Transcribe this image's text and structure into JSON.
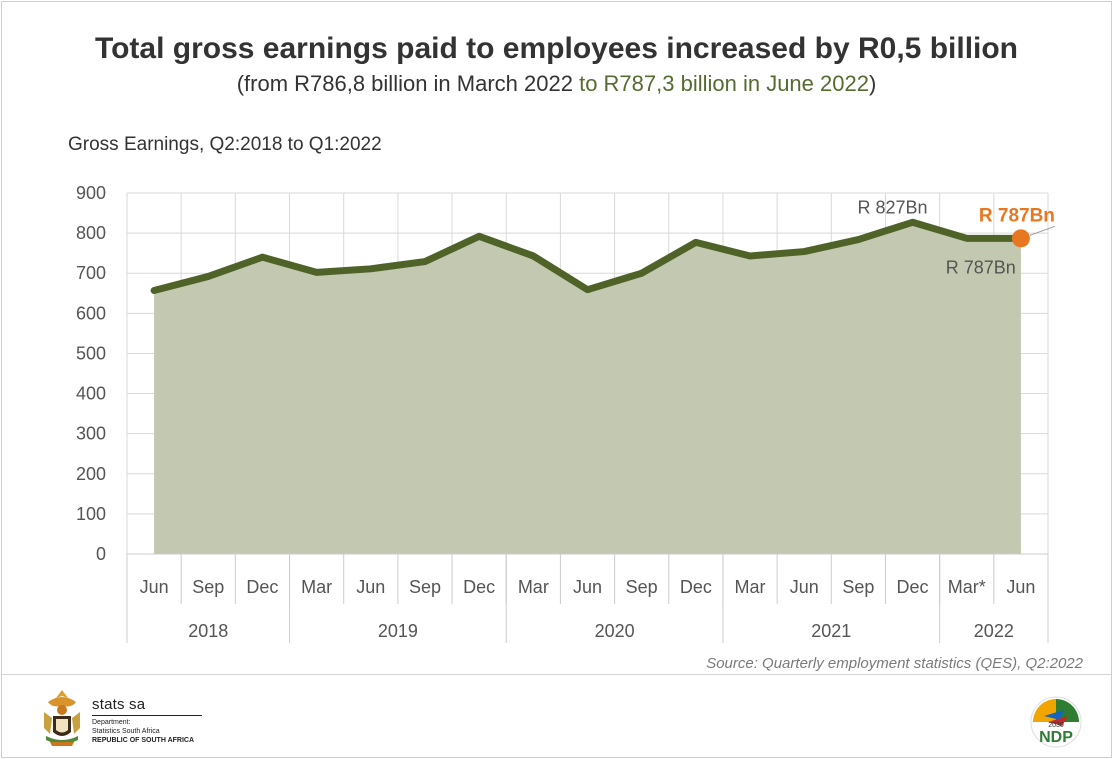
{
  "header": {
    "title": "Total gross earnings paid to employees increased by R0,5 billion",
    "subtitle_a": "(from R786,8 billion in March 2022 ",
    "subtitle_b": "to R787,3 billion in June 2022",
    "subtitle_c": ")"
  },
  "chart_label": "Gross Earnings, Q2:2018 to Q1:2022",
  "source": "Source: Quarterly employment statistics (QES), Q2:2022",
  "colors": {
    "line": "#4f6228",
    "fill": "#c3c8b0",
    "highlight": "#e87722",
    "text": "#333333",
    "grid": "#d9d9d9"
  },
  "chart_data": {
    "type": "area",
    "categories": [
      "Jun",
      "Sep",
      "Dec",
      "Mar",
      "Jun",
      "Sep",
      "Dec",
      "Mar",
      "Jun",
      "Sep",
      "Dec",
      "Mar",
      "Jun",
      "Sep",
      "Dec",
      "Mar*",
      "Jun"
    ],
    "year_groups": [
      {
        "label": "2018",
        "span": 3
      },
      {
        "label": "2019",
        "span": 4
      },
      {
        "label": "2020",
        "span": 4
      },
      {
        "label": "2021",
        "span": 4
      },
      {
        "label": "2022",
        "span": 2
      }
    ],
    "series": [
      {
        "values": [
          657,
          692,
          740,
          702,
          711,
          729,
          792,
          743,
          659,
          700,
          777,
          743,
          754,
          784,
          827,
          787,
          787
        ]
      }
    ],
    "yticks": [
      0,
      100,
      200,
      300,
      400,
      500,
      600,
      700,
      800,
      900
    ],
    "ylim": [
      0,
      900
    ],
    "annotations": [
      {
        "index": 14,
        "text": "R 827Bn",
        "style": "normal"
      },
      {
        "index": 15,
        "text": "R 787Bn",
        "style": "normal"
      },
      {
        "index": 16,
        "text": "R 787Bn",
        "style": "highlight"
      }
    ],
    "grid": true,
    "legend": "none"
  },
  "branding": {
    "org_name": "stats sa",
    "org_line1": "Department:",
    "org_line2": "Statistics South Africa",
    "org_line3": "REPUBLIC OF SOUTH AFRICA",
    "ndp_year": "2030",
    "ndp_text": "NDP"
  }
}
